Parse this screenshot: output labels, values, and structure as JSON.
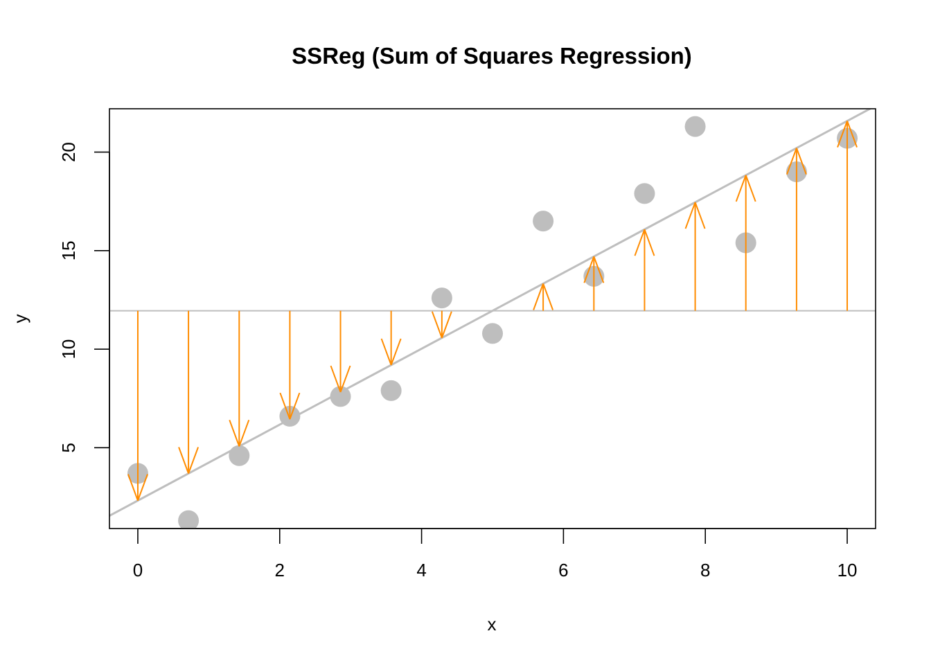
{
  "chart_data": {
    "type": "scatter",
    "title": "SSReg (Sum of Squares Regression)",
    "xlabel": "x",
    "ylabel": "y",
    "xlim": [
      -0.4,
      10.4
    ],
    "ylim": [
      0.9,
      22.2
    ],
    "x_ticks": [
      0,
      2,
      4,
      6,
      8,
      10
    ],
    "y_ticks": [
      5,
      10,
      15,
      20
    ],
    "points": {
      "x": [
        0,
        0.714,
        1.429,
        2.143,
        2.857,
        3.571,
        4.286,
        5.0,
        5.714,
        6.429,
        7.143,
        7.857,
        8.571,
        9.286,
        10.0
      ],
      "y": [
        3.7,
        1.3,
        4.6,
        6.6,
        7.6,
        7.9,
        12.6,
        10.8,
        16.5,
        13.7,
        17.9,
        21.3,
        15.4,
        19.0,
        20.7
      ]
    },
    "mean_y": 11.95,
    "regression": {
      "intercept": 2.32,
      "slope": 1.926
    },
    "colors": {
      "points": "#bebebe",
      "regression_line": "#bebebe",
      "mean_line": "#bebebe",
      "arrows": "#ff8c00",
      "axes": "#000000"
    }
  }
}
